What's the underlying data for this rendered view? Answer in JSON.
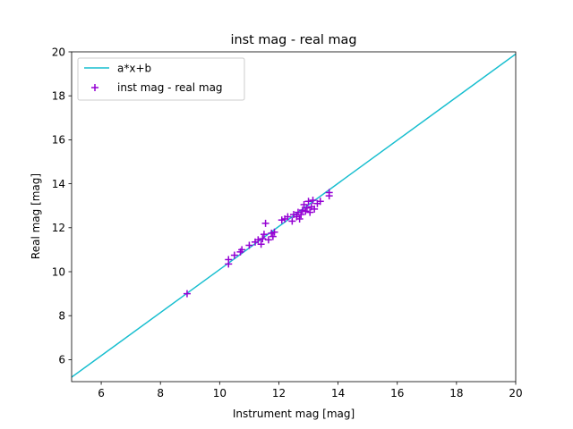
{
  "chart_data": {
    "type": "scatter",
    "title": "inst mag - real mag",
    "xlabel": "Instrument mag [mag]",
    "ylabel": "Real mag [mag]",
    "xlim": [
      5,
      20
    ],
    "ylim": [
      5,
      20
    ],
    "xticks": [
      6,
      8,
      10,
      12,
      14,
      16,
      18,
      20
    ],
    "yticks": [
      6,
      8,
      10,
      12,
      14,
      16,
      18,
      20
    ],
    "grid": false,
    "legend_position": "upper-left",
    "fit_line": {
      "name": "a*x+b",
      "color": "#17becf",
      "slope": 0.98,
      "intercept": 0.3
    },
    "series": [
      {
        "name": "inst mag - real mag",
        "marker": "plus",
        "color": "#9400d3",
        "points": [
          [
            8.9,
            9.0
          ],
          [
            10.3,
            10.35
          ],
          [
            10.3,
            10.55
          ],
          [
            10.5,
            10.75
          ],
          [
            10.7,
            10.9
          ],
          [
            10.75,
            11.0
          ],
          [
            11.0,
            11.2
          ],
          [
            11.2,
            11.35
          ],
          [
            11.3,
            11.45
          ],
          [
            11.4,
            11.25
          ],
          [
            11.45,
            11.5
          ],
          [
            11.5,
            11.7
          ],
          [
            11.55,
            12.2
          ],
          [
            11.65,
            11.45
          ],
          [
            11.75,
            11.75
          ],
          [
            11.8,
            11.6
          ],
          [
            11.85,
            11.8
          ],
          [
            12.1,
            12.35
          ],
          [
            12.2,
            12.4
          ],
          [
            12.3,
            12.5
          ],
          [
            12.45,
            12.3
          ],
          [
            12.5,
            12.6
          ],
          [
            12.6,
            12.5
          ],
          [
            12.65,
            12.7
          ],
          [
            12.7,
            12.4
          ],
          [
            12.75,
            12.6
          ],
          [
            12.8,
            12.8
          ],
          [
            12.85,
            13.05
          ],
          [
            12.9,
            12.75
          ],
          [
            12.95,
            12.9
          ],
          [
            13.0,
            13.2
          ],
          [
            13.05,
            12.7
          ],
          [
            13.1,
            12.95
          ],
          [
            13.15,
            13.25
          ],
          [
            13.2,
            12.85
          ],
          [
            13.3,
            13.1
          ],
          [
            13.4,
            13.2
          ],
          [
            13.7,
            13.45
          ],
          [
            13.7,
            13.6
          ]
        ]
      }
    ]
  }
}
